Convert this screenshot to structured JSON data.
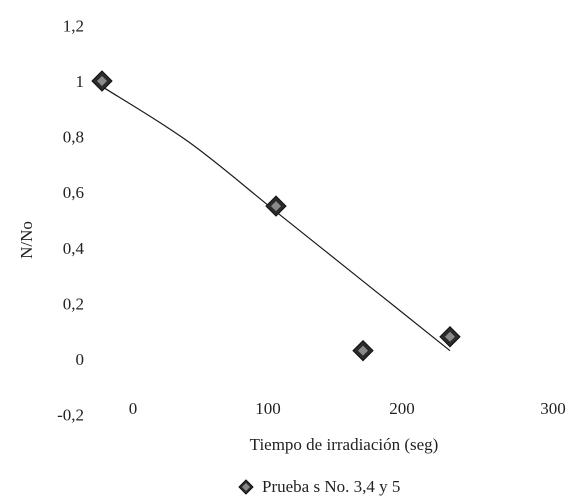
{
  "chart_data": {
    "type": "scatter",
    "title": "",
    "xlabel": "Tiempo de irradiación (seg)",
    "ylabel": "N/No",
    "x_ticks": [
      "0",
      "100",
      "200",
      "300"
    ],
    "y_ticks": [
      "-0,2",
      "0",
      "0,2",
      "0,4",
      "0,6",
      "0,8",
      "1",
      "1,2"
    ],
    "xlim": [
      0,
      300
    ],
    "ylim": [
      -0.2,
      1.2
    ],
    "grid": false,
    "legend_position": "bottom",
    "series": [
      {
        "name": "Prueba s No. 3,4 y 5",
        "marker": "diamond",
        "color": "#2b2b2b",
        "points": [
          {
            "x": 0,
            "y": 1.0
          },
          {
            "x": 120,
            "y": 0.55
          },
          {
            "x": 180,
            "y": 0.03
          },
          {
            "x": 240,
            "y": 0.08
          }
        ]
      }
    ],
    "trendline": {
      "type": "polynomial",
      "color": "#1a1a1a",
      "points": [
        {
          "x": 0,
          "y": 0.98
        },
        {
          "x": 60,
          "y": 0.78
        },
        {
          "x": 120,
          "y": 0.53
        },
        {
          "x": 180,
          "y": 0.28
        },
        {
          "x": 240,
          "y": 0.03
        }
      ]
    }
  }
}
